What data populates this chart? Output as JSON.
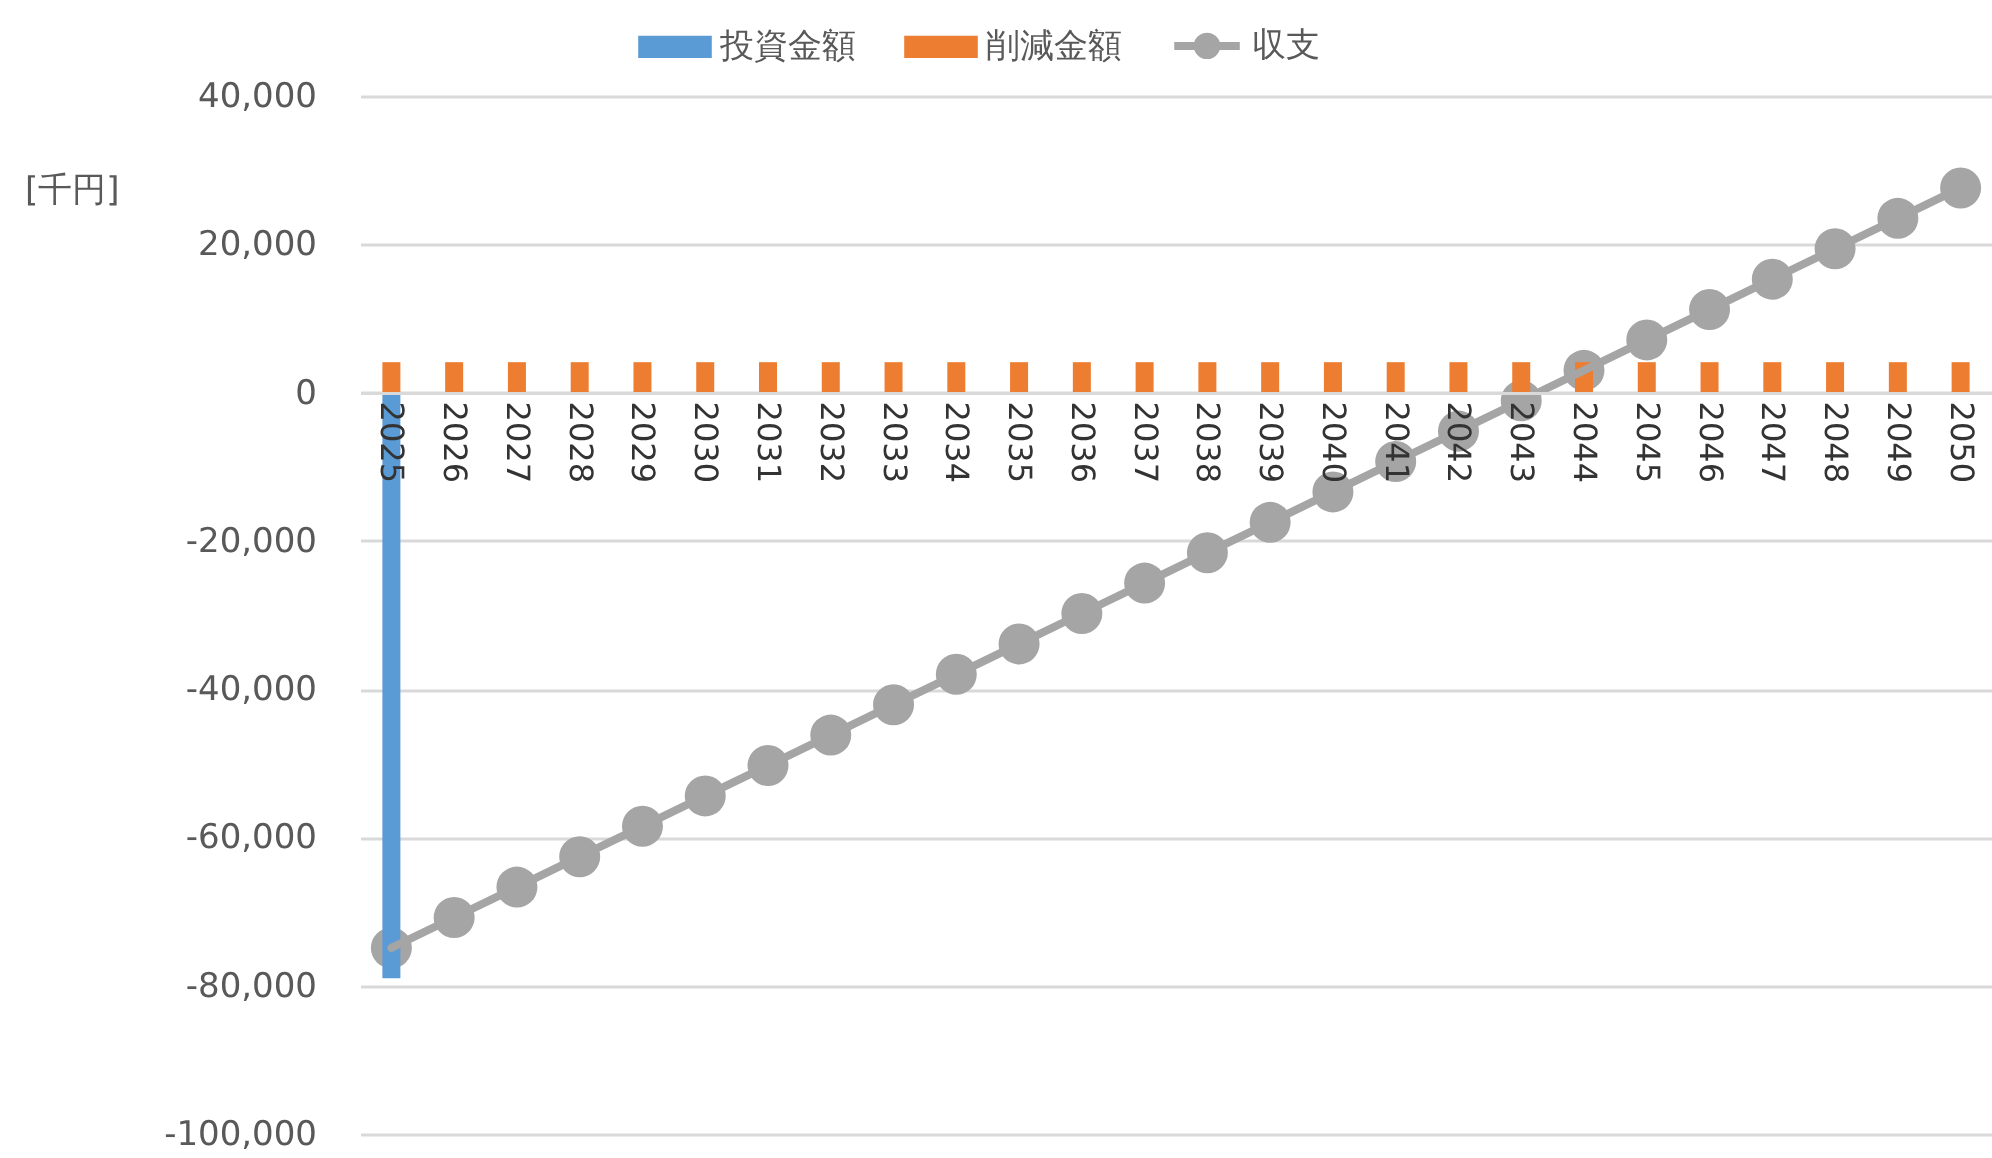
{
  "chart_data": {
    "type": "bar",
    "ylabel": "[千円]",
    "categories": [
      "2025",
      "2026",
      "2027",
      "2028",
      "2029",
      "2030",
      "2031",
      "2032",
      "2033",
      "2034",
      "2035",
      "2036",
      "2037",
      "2038",
      "2039",
      "2040",
      "2041",
      "2042",
      "2043",
      "2044",
      "2045",
      "2046",
      "2047",
      "2048",
      "2049",
      "2050"
    ],
    "series": [
      {
        "name": "投資金額",
        "color": "#5b9bd5",
        "values": [
          -79000,
          null,
          null,
          null,
          null,
          null,
          null,
          null,
          null,
          null,
          null,
          null,
          null,
          null,
          null,
          null,
          null,
          null,
          null,
          null,
          null,
          null,
          null,
          null,
          null,
          null
        ]
      },
      {
        "name": "削減金額",
        "color": "#ed7d31",
        "values": [
          4100,
          4100,
          4100,
          4100,
          4100,
          4100,
          4100,
          4100,
          4100,
          4100,
          4100,
          4100,
          4100,
          4100,
          4100,
          4100,
          4100,
          4100,
          4100,
          4100,
          4100,
          4100,
          4100,
          4100,
          4100,
          4100
        ]
      },
      {
        "name": "収支",
        "type": "line",
        "color": "#a5a5a5",
        "values": [
          -74900,
          -70800,
          -66700,
          -62600,
          -58500,
          -54400,
          -50300,
          -46200,
          -42100,
          -38000,
          -33900,
          -29800,
          -25700,
          -21600,
          -17500,
          -13400,
          -9300,
          -5200,
          -1100,
          3000,
          7100,
          11200,
          15300,
          19400,
          23500,
          27600
        ]
      }
    ],
    "ylim": [
      -100000,
      40000
    ],
    "yticks": [
      {
        "value": -100000,
        "label": "-100,000"
      },
      {
        "value": -80000,
        "label": "-80,000"
      },
      {
        "value": -60000,
        "label": "-60,000"
      },
      {
        "value": -40000,
        "label": "-40,000"
      },
      {
        "value": -20000,
        "label": "-20,000"
      },
      0,
      {
        "value": 20000,
        "label": "20,000"
      },
      {
        "value": 40000,
        "label": "40,000"
      }
    ],
    "grid": "y",
    "legend": "top",
    "marker": "circle"
  }
}
